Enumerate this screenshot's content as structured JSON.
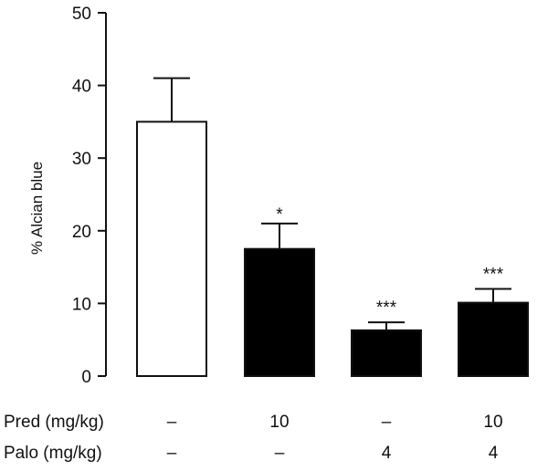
{
  "chart_data": {
    "type": "bar",
    "ylabel": "% Alcian blue",
    "ylim": [
      0,
      50
    ],
    "yticks": [
      "0",
      "10",
      "20",
      "30",
      "40",
      "50"
    ],
    "bars": [
      {
        "value": 35.0,
        "error": 6.0,
        "fill": "#ffffff",
        "significance": ""
      },
      {
        "value": 17.5,
        "error": 3.5,
        "fill": "#000000",
        "significance": "*"
      },
      {
        "value": 6.3,
        "error": 1.1,
        "fill": "#000000",
        "significance": "***"
      },
      {
        "value": 10.1,
        "error": 1.9,
        "fill": "#000000",
        "significance": "***"
      }
    ],
    "treatments": [
      {
        "label": "Pred (mg/kg)",
        "values": [
          "–",
          "10",
          "–",
          "10"
        ]
      },
      {
        "label": "Palo (mg/kg)",
        "values": [
          "–",
          "–",
          "4",
          "4"
        ]
      }
    ]
  }
}
